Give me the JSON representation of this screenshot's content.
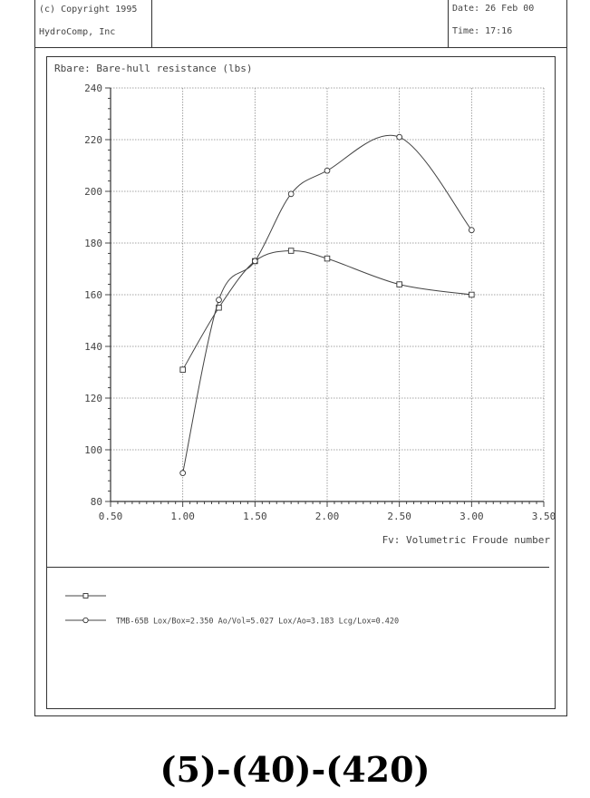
{
  "header": {
    "copyright": "(c) Copyright 1995",
    "company": "HydroComp, Inc",
    "date": "Date: 26 Feb 00",
    "time": "Time: 17:16"
  },
  "chart_data": {
    "type": "line",
    "title": "Rbare: Bare-hull resistance (lbs)",
    "xlabel": "Fv: Volumetric Froude number",
    "xlim": [
      0.5,
      3.5
    ],
    "ylim": [
      80,
      240
    ],
    "xticks": [
      "0.50",
      "1.00",
      "1.50",
      "2.00",
      "2.50",
      "3.00",
      "3.50"
    ],
    "yticks": [
      "80",
      "100",
      "120",
      "140",
      "160",
      "180",
      "200",
      "220",
      "240"
    ],
    "grid": true,
    "series": [
      {
        "name": "",
        "marker": "square",
        "x": [
          1.0,
          1.25,
          1.5,
          1.75,
          2.0,
          2.5,
          3.0
        ],
        "y": [
          131,
          155,
          173,
          177,
          174,
          164,
          160
        ]
      },
      {
        "name": "TMB-65B Lox/Box=2.350 Ao/Vol=5.027 Lox/Ao=3.183 Lcg/Lox=0.420",
        "marker": "circle",
        "x": [
          1.0,
          1.25,
          1.5,
          1.75,
          2.0,
          2.5,
          3.0
        ],
        "y": [
          91,
          158,
          173,
          199,
          208,
          221,
          185
        ]
      }
    ]
  },
  "caption": "(5)-(40)-(420)"
}
